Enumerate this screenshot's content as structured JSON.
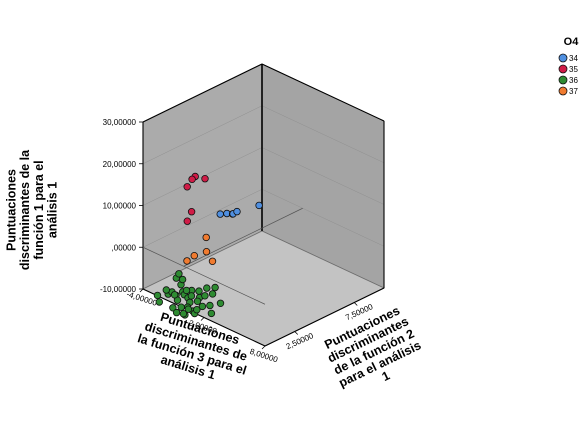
{
  "chart_data": {
    "type": "scatter",
    "projection": "3d",
    "title": "",
    "zlabel": [
      "Puntuaciones",
      "discriminantes de la",
      "función 1 para el",
      "análisis 1"
    ],
    "xlabel": [
      "Puntuaciones",
      "discriminantes de",
      "la función 3 para el",
      "análisis 1"
    ],
    "ylabel": [
      "Puntuaciones",
      "discriminantes",
      "de la función 2",
      "para el análisis",
      "1"
    ],
    "zlim": [
      -10,
      30
    ],
    "xlim": [
      -4,
      8
    ],
    "ylim": [
      0,
      10
    ],
    "z_ticks": [
      "-10,00000",
      ",00000",
      "10,00000",
      "20,00000",
      "30,00000"
    ],
    "x_ticks": [
      "-4,00000",
      "2,00000",
      "8,00000"
    ],
    "y_ticks": [
      "2,50000",
      "7,50000"
    ],
    "legend": {
      "title": "O4",
      "position": "top-right",
      "entries": [
        "34",
        "35",
        "36",
        "37"
      ]
    },
    "colors": {
      "34": "#4f8fe0",
      "35": "#d01c47",
      "36": "#2e8b32",
      "37": "#f07b30"
    },
    "series": [
      {
        "name": "34",
        "points": [
          {
            "x": -3.2,
            "y": 5.8,
            "z": 0.8
          },
          {
            "x": -3.0,
            "y": 6.2,
            "z": 0.6
          },
          {
            "x": -2.8,
            "y": 6.5,
            "z": 0.3
          },
          {
            "x": -3.1,
            "y": 6.8,
            "z": -0.4
          },
          {
            "x": -3.3,
            "y": 7.3,
            "z": -0.8
          },
          {
            "x": -3.0,
            "y": 8.9,
            "z": -1.2
          }
        ]
      },
      {
        "name": "35",
        "points": [
          {
            "x": 2.3,
            "y": -1.0,
            "z": 25.5
          },
          {
            "x": 2.0,
            "y": -1.0,
            "z": 24.5
          },
          {
            "x": 2.1,
            "y": -1.5,
            "z": 23.5
          },
          {
            "x": 2.8,
            "y": -0.6,
            "z": 25.0
          },
          {
            "x": 2.3,
            "y": -1.3,
            "z": 17.5
          },
          {
            "x": 2.0,
            "y": -1.4,
            "z": 15.0
          }
        ]
      },
      {
        "name": "36",
        "points": [
          {
            "x": 0.7,
            "y": -2.8,
            "z": -2.3
          },
          {
            "x": 1.4,
            "y": -2.5,
            "z": -1.6
          },
          {
            "x": 1.9,
            "y": -2.6,
            "z": -0.4
          },
          {
            "x": 1.0,
            "y": -2.9,
            "z": -3.4
          },
          {
            "x": 2.2,
            "y": -2.1,
            "z": 1.0
          },
          {
            "x": 2.0,
            "y": -1.8,
            "z": 1.6
          },
          {
            "x": 1.7,
            "y": -2.1,
            "z": -2.1
          },
          {
            "x": 2.6,
            "y": -2.3,
            "z": 0.0
          },
          {
            "x": 2.4,
            "y": -2.0,
            "z": -1.3
          },
          {
            "x": 2.1,
            "y": -2.7,
            "z": -3.8
          },
          {
            "x": 3.0,
            "y": -2.2,
            "z": -1.1
          },
          {
            "x": 2.7,
            "y": -2.9,
            "z": -4.0
          },
          {
            "x": 3.5,
            "y": -1.7,
            "z": 0.4
          },
          {
            "x": 3.3,
            "y": -2.3,
            "z": -1.7
          },
          {
            "x": 3.4,
            "y": -2.8,
            "z": -3.9
          },
          {
            "x": 3.9,
            "y": -2.0,
            "z": -0.3
          },
          {
            "x": 4.2,
            "y": -1.8,
            "z": 0.2
          },
          {
            "x": 4.6,
            "y": -1.5,
            "z": 0.7
          },
          {
            "x": 2.9,
            "y": -2.5,
            "z": -4.6
          },
          {
            "x": 3.7,
            "y": -2.4,
            "z": -3.2
          },
          {
            "x": 3.2,
            "y": -2.4,
            "z": -2.8
          },
          {
            "x": 2.9,
            "y": -1.8,
            "z": 0.0
          },
          {
            "x": 1.5,
            "y": -1.9,
            "z": 1.5
          },
          {
            "x": 5.5,
            "y": -1.6,
            "z": -0.4
          },
          {
            "x": 4.3,
            "y": -2.1,
            "z": -1.8
          },
          {
            "x": 2.2,
            "y": -2.4,
            "z": -2.3
          },
          {
            "x": 2.5,
            "y": -1.9,
            "z": -0.3
          },
          {
            "x": 3.8,
            "y": -1.3,
            "z": 0.9
          },
          {
            "x": 3.7,
            "y": -2.0,
            "z": -1.4
          },
          {
            "x": 1.1,
            "y": -2.4,
            "z": -1.1
          },
          {
            "x": 4.0,
            "y": -2.5,
            "z": -3.3
          },
          {
            "x": 3.1,
            "y": -2.0,
            "z": -0.8
          },
          {
            "x": 4.8,
            "y": -1.9,
            "z": -1.3
          },
          {
            "x": 4.5,
            "y": -1.2,
            "z": 1.7
          },
          {
            "x": 2.8,
            "y": -2.6,
            "z": -3.0
          },
          {
            "x": 5.3,
            "y": -2.2,
            "z": -2.2
          },
          {
            "x": 1.8,
            "y": -2.3,
            "z": -1.6
          },
          {
            "x": 1.4,
            "y": -1.6,
            "z": 2.0
          },
          {
            "x": 3.5,
            "y": -2.6,
            "z": -2.7
          },
          {
            "x": 4.1,
            "y": -2.4,
            "z": -2.4
          }
        ]
      },
      {
        "name": "37",
        "points": [
          {
            "x": 2.8,
            "y": -0.5,
            "z": 10.8
          },
          {
            "x": 2.2,
            "y": -1.6,
            "z": 6.0
          },
          {
            "x": 2.8,
            "y": -1.5,
            "z": 7.8
          },
          {
            "x": 3.3,
            "y": -0.9,
            "z": 8.5
          },
          {
            "x": 3.3,
            "y": -0.4,
            "z": 5.5
          }
        ]
      }
    ]
  }
}
